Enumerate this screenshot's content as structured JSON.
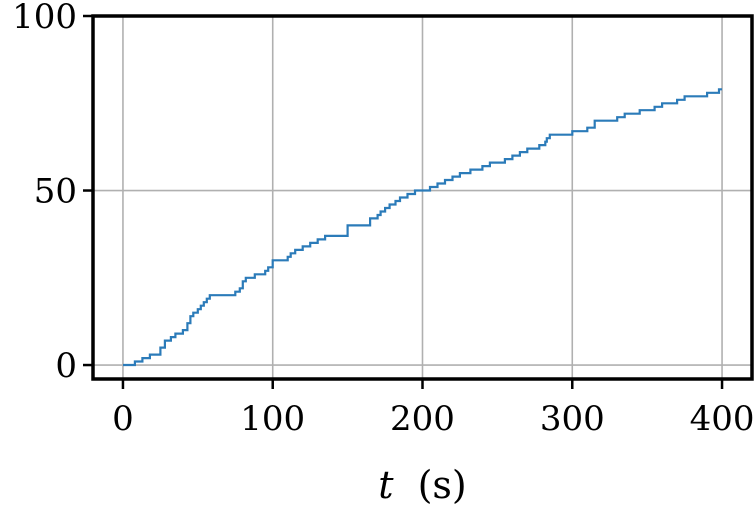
{
  "chart_data": {
    "type": "line",
    "title": "",
    "xlabel": "(s)",
    "xlabel_var": "t",
    "ylabel": "",
    "xlim": [
      -20,
      420
    ],
    "ylim": [
      -4,
      100
    ],
    "xticks": [
      0,
      100,
      200,
      300,
      400
    ],
    "yticks": [
      0,
      50,
      100
    ],
    "xtick_labels": [
      "0",
      "100",
      "200",
      "300",
      "400"
    ],
    "ytick_labels": [
      "0",
      "50",
      "100"
    ],
    "grid": true,
    "legend": "none",
    "step": true,
    "colors": {
      "line": "#2b7bb9",
      "grid": "#b0b0b0",
      "axes": "#000000"
    },
    "series": [
      {
        "x": [
          0,
          8,
          13,
          18,
          25,
          28,
          32,
          35,
          40,
          43,
          45,
          47,
          50,
          52,
          54,
          56,
          58,
          75,
          78,
          80,
          82,
          88,
          95,
          97,
          100,
          110,
          112,
          115,
          120,
          125,
          130,
          135,
          150,
          165,
          170,
          172,
          175,
          178,
          182,
          185,
          190,
          195,
          205,
          210,
          215,
          220,
          225,
          232,
          240,
          245,
          255,
          260,
          265,
          270,
          278,
          282,
          283,
          285,
          300,
          310,
          315,
          330,
          335,
          345,
          355,
          360,
          365,
          370,
          375,
          390,
          393,
          398,
          400
        ],
        "y": [
          0,
          1,
          2,
          3,
          5,
          7,
          8,
          9,
          10,
          12,
          14,
          15,
          16,
          17,
          18,
          19,
          20,
          21,
          22,
          24,
          25,
          26,
          27,
          28,
          30,
          31,
          32,
          33,
          34,
          35,
          36,
          37,
          40,
          42,
          43,
          44,
          45,
          46,
          47,
          48,
          49,
          50,
          51,
          52,
          53,
          54,
          55,
          56,
          57,
          58,
          59,
          60,
          61,
          62,
          63,
          64,
          65,
          66,
          67,
          68,
          70,
          71,
          72,
          73,
          74,
          75,
          75,
          76,
          77,
          78,
          78,
          79,
          79
        ]
      }
    ]
  }
}
